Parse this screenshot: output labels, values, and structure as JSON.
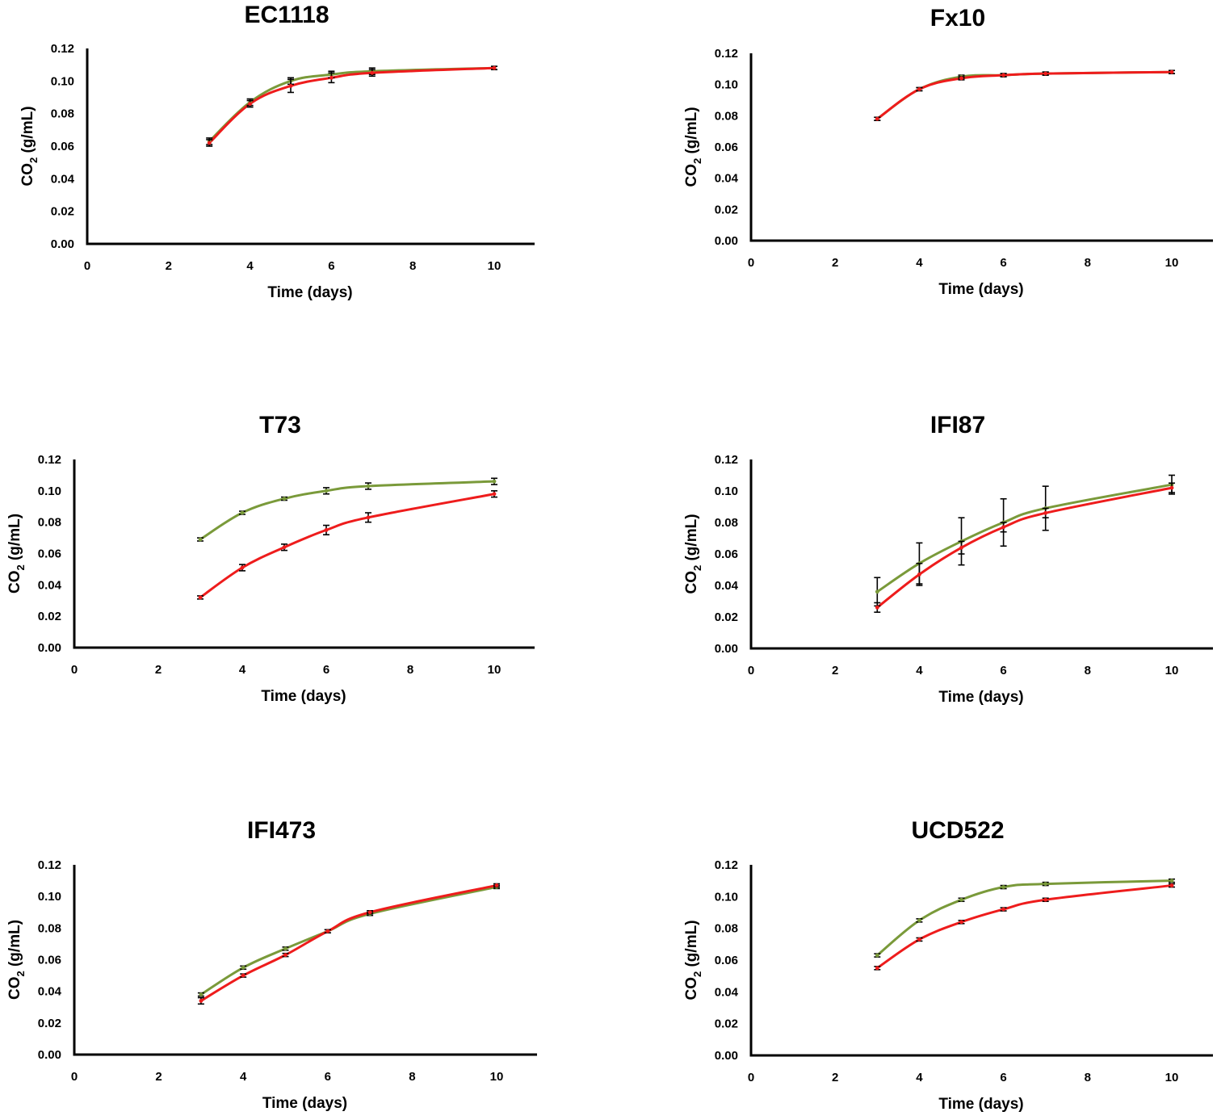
{
  "chart_data": [
    {
      "type": "line",
      "title": "EC1118",
      "xlabel": "Time (days)",
      "ylabel": "CO2 (g/mL)",
      "ylabel_main": "CO",
      "ylabel_sub": "2",
      "ylabel_unit": " (g/mL)",
      "xlim": [
        0,
        11
      ],
      "ylim": [
        0,
        0.12
      ],
      "xticks": [
        "0",
        "2",
        "4",
        "6",
        "8",
        "10"
      ],
      "yticks": [
        "0.00",
        "0.02",
        "0.04",
        "0.06",
        "0.08",
        "0.10",
        "0.12"
      ],
      "series": [
        {
          "name": "green",
          "color": "#7a9a3a",
          "x": [
            3,
            4,
            5,
            6,
            7,
            10
          ],
          "values": [
            0.063,
            0.087,
            0.1,
            0.104,
            0.106,
            0.108
          ],
          "err": [
            0.002,
            0.002,
            0.002,
            0.002,
            0.002,
            0.001
          ]
        },
        {
          "name": "red",
          "color": "#ee1c1c",
          "x": [
            3,
            4,
            5,
            6,
            7,
            10
          ],
          "values": [
            0.062,
            0.086,
            0.097,
            0.102,
            0.105,
            0.108
          ],
          "err": [
            0.002,
            0.002,
            0.004,
            0.003,
            0.002,
            0.001
          ]
        }
      ]
    },
    {
      "type": "line",
      "title": "Fx10",
      "xlabel": "Time (days)",
      "ylabel": "CO2 (g/mL)",
      "ylabel_main": "CO",
      "ylabel_sub": "2",
      "ylabel_unit": " (g/mL)",
      "xlim": [
        0,
        11
      ],
      "ylim": [
        0,
        0.12
      ],
      "xticks": [
        "0",
        "2",
        "4",
        "6",
        "8",
        "10"
      ],
      "yticks": [
        "0.00",
        "0.02",
        "0.04",
        "0.06",
        "0.08",
        "0.10",
        "0.12"
      ],
      "series": [
        {
          "name": "green",
          "color": "#7a9a3a",
          "x": [
            3,
            4,
            5,
            6,
            7,
            10
          ],
          "values": [
            0.078,
            0.097,
            0.105,
            0.106,
            0.107,
            0.108
          ],
          "err": [
            0.001,
            0.001,
            0.001,
            0.001,
            0.001,
            0.001
          ]
        },
        {
          "name": "red",
          "color": "#ee1c1c",
          "x": [
            3,
            4,
            5,
            6,
            7,
            10
          ],
          "values": [
            0.078,
            0.097,
            0.104,
            0.106,
            0.107,
            0.108
          ],
          "err": [
            0.001,
            0.001,
            0.001,
            0.001,
            0.001,
            0.001
          ]
        }
      ]
    },
    {
      "type": "line",
      "title": "T73",
      "xlabel": "Time (days)",
      "ylabel": "CO2 (g/mL)",
      "ylabel_main": "CO",
      "ylabel_sub": "2",
      "ylabel_unit": " (g/mL)",
      "xlim": [
        0,
        11
      ],
      "ylim": [
        0,
        0.12
      ],
      "xticks": [
        "0",
        "2",
        "4",
        "6",
        "8",
        "10"
      ],
      "yticks": [
        "0.00",
        "0.02",
        "0.04",
        "0.06",
        "0.08",
        "0.10",
        "0.12"
      ],
      "series": [
        {
          "name": "green",
          "color": "#7a9a3a",
          "x": [
            3,
            4,
            5,
            6,
            7,
            10
          ],
          "values": [
            0.069,
            0.086,
            0.095,
            0.1,
            0.103,
            0.106
          ],
          "err": [
            0.001,
            0.001,
            0.001,
            0.002,
            0.002,
            0.002
          ]
        },
        {
          "name": "red",
          "color": "#ee1c1c",
          "x": [
            3,
            4,
            5,
            6,
            7,
            10
          ],
          "values": [
            0.032,
            0.051,
            0.064,
            0.075,
            0.083,
            0.098
          ],
          "err": [
            0.001,
            0.002,
            0.002,
            0.003,
            0.003,
            0.002
          ]
        }
      ]
    },
    {
      "type": "line",
      "title": "IFI87",
      "xlabel": "Time (days)",
      "ylabel": "CO2 (g/mL)",
      "ylabel_main": "CO",
      "ylabel_sub": "2",
      "ylabel_unit": " (g/mL)",
      "xlim": [
        0,
        11
      ],
      "ylim": [
        0,
        0.12
      ],
      "xticks": [
        "0",
        "2",
        "4",
        "6",
        "8",
        "10"
      ],
      "yticks": [
        "0.00",
        "0.02",
        "0.04",
        "0.06",
        "0.08",
        "0.10",
        "0.12"
      ],
      "series": [
        {
          "name": "green",
          "color": "#7a9a3a",
          "x": [
            3,
            4,
            5,
            6,
            7,
            10
          ],
          "values": [
            0.036,
            0.054,
            0.068,
            0.08,
            0.089,
            0.104
          ],
          "err": [
            0.009,
            0.013,
            0.015,
            0.015,
            0.014,
            0.006
          ]
        },
        {
          "name": "red",
          "color": "#ee1c1c",
          "x": [
            3,
            4,
            5,
            6,
            7,
            10
          ],
          "values": [
            0.026,
            0.047,
            0.064,
            0.077,
            0.086,
            0.102
          ],
          "err": [
            0.003,
            0.007,
            0.004,
            0.003,
            0.003,
            0.003
          ]
        }
      ]
    },
    {
      "type": "line",
      "title": "IFI473",
      "xlabel": "Time (days)",
      "ylabel": "CO2 (g/mL)",
      "ylabel_main": "CO",
      "ylabel_sub": "2",
      "ylabel_unit": " (g/mL)",
      "xlim": [
        0,
        11
      ],
      "ylim": [
        0,
        0.12
      ],
      "xticks": [
        "0",
        "2",
        "4",
        "6",
        "8",
        "10"
      ],
      "yticks": [
        "0.00",
        "0.02",
        "0.04",
        "0.06",
        "0.08",
        "0.10",
        "0.12"
      ],
      "series": [
        {
          "name": "green",
          "color": "#7a9a3a",
          "x": [
            3,
            4,
            5,
            6,
            7,
            10
          ],
          "values": [
            0.038,
            0.055,
            0.067,
            0.078,
            0.089,
            0.106
          ],
          "err": [
            0.001,
            0.001,
            0.001,
            0.001,
            0.001,
            0.001
          ]
        },
        {
          "name": "red",
          "color": "#ee1c1c",
          "x": [
            3,
            4,
            5,
            6,
            7,
            10
          ],
          "values": [
            0.034,
            0.05,
            0.063,
            0.078,
            0.09,
            0.107
          ],
          "err": [
            0.002,
            0.001,
            0.001,
            0.001,
            0.001,
            0.001
          ]
        }
      ]
    },
    {
      "type": "line",
      "title": "UCD522",
      "xlabel": "Time (days)",
      "ylabel": "CO2 (g/mL)",
      "ylabel_main": "CO",
      "ylabel_sub": "2",
      "ylabel_unit": " (g/mL)",
      "xlim": [
        0,
        11
      ],
      "ylim": [
        0,
        0.12
      ],
      "xticks": [
        "0",
        "2",
        "4",
        "6",
        "8",
        "10"
      ],
      "yticks": [
        "0.00",
        "0.02",
        "0.04",
        "0.06",
        "0.08",
        "0.10",
        "0.12"
      ],
      "series": [
        {
          "name": "green",
          "color": "#7a9a3a",
          "x": [
            3,
            4,
            5,
            6,
            7,
            10
          ],
          "values": [
            0.063,
            0.085,
            0.098,
            0.106,
            0.108,
            0.11
          ],
          "err": [
            0.001,
            0.001,
            0.001,
            0.001,
            0.001,
            0.001
          ]
        },
        {
          "name": "red",
          "color": "#ee1c1c",
          "x": [
            3,
            4,
            5,
            6,
            7,
            10
          ],
          "values": [
            0.055,
            0.073,
            0.084,
            0.092,
            0.098,
            0.107
          ],
          "err": [
            0.001,
            0.001,
            0.001,
            0.001,
            0.001,
            0.001
          ]
        }
      ]
    }
  ]
}
